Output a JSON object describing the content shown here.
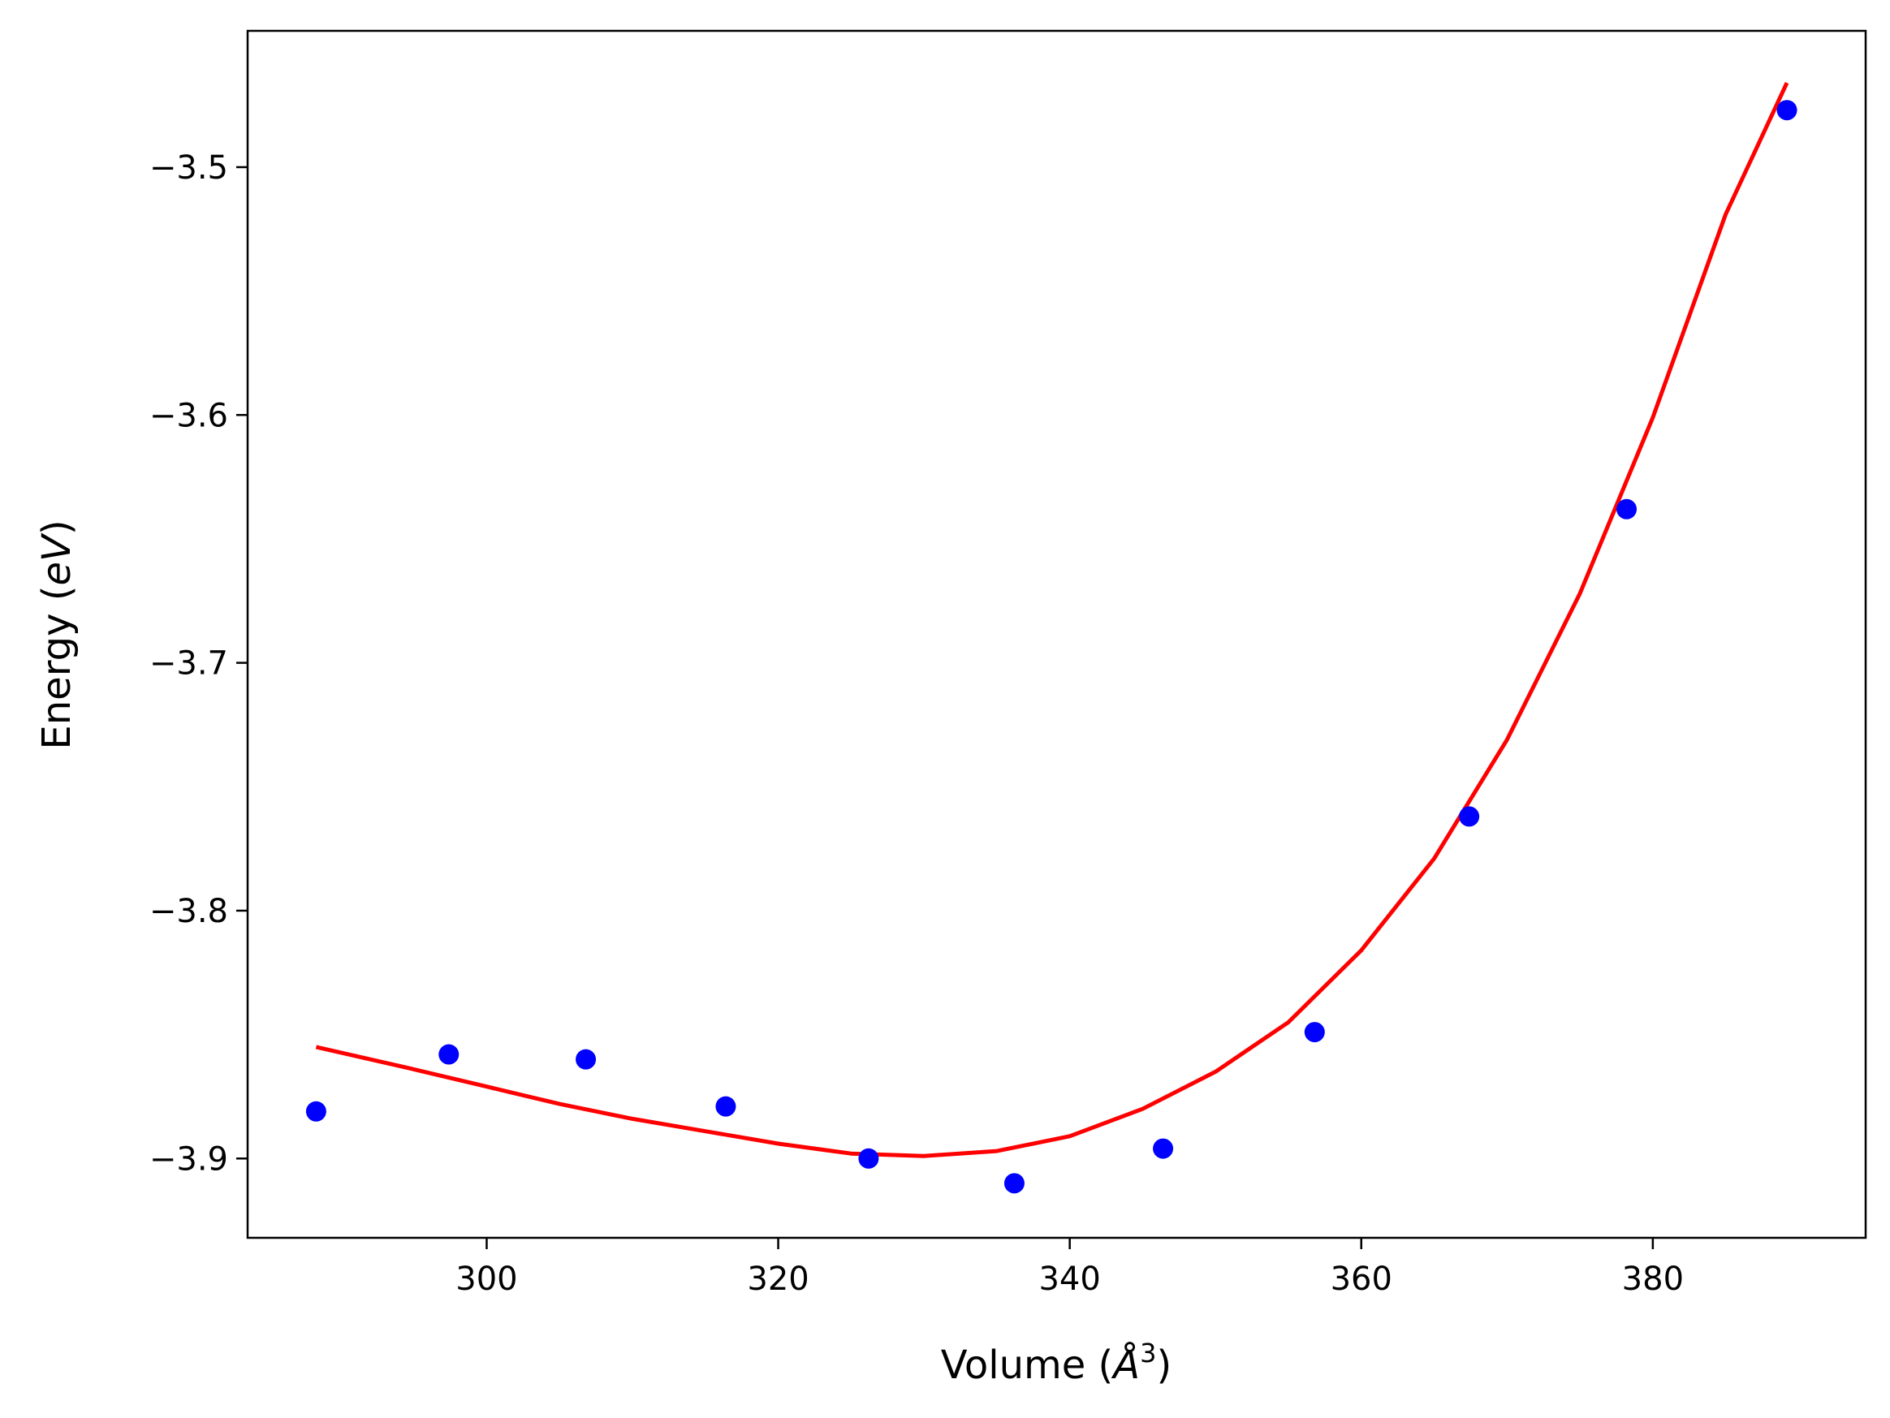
{
  "chart_data": {
    "type": "scatter",
    "title": "",
    "xlabel": "Volume (Å³)",
    "xlabel_parts": {
      "prefix": "Volume (",
      "symbol": "Å",
      "superscript": "3",
      "suffix": ")"
    },
    "ylabel": "Energy (eV)",
    "ylabel_parts": {
      "prefix": "Energy (",
      "symbol": "eV",
      "suffix": ")"
    },
    "xlim": [
      283.6,
      394.6
    ],
    "ylim": [
      -3.932,
      -3.445
    ],
    "xticks": [
      300,
      320,
      340,
      360,
      380
    ],
    "xtick_labels": [
      "300",
      "320",
      "340",
      "360",
      "380"
    ],
    "yticks": [
      -3.9,
      -3.8,
      -3.7,
      -3.6,
      -3.5
    ],
    "ytick_labels": [
      "−3.9",
      "−3.8",
      "−3.7",
      "−3.6",
      "−3.5"
    ],
    "grid": false,
    "series": [
      {
        "kind": "scatter",
        "color": "#0000ff",
        "x": [
          288.3,
          297.4,
          306.8,
          316.4,
          326.2,
          336.2,
          346.4,
          356.8,
          367.4,
          378.2,
          389.2
        ],
        "y": [
          -3.881,
          -3.858,
          -3.86,
          -3.879,
          -3.9,
          -3.91,
          -3.896,
          -3.849,
          -3.762,
          -3.638,
          -3.477
        ]
      },
      {
        "kind": "line",
        "color": "#ff0000",
        "x": [
          288.3,
          295,
          300,
          305,
          310,
          315,
          320,
          325,
          330,
          335,
          340,
          345,
          350,
          355,
          360,
          365,
          370,
          375,
          380,
          385,
          389.2
        ],
        "y": [
          -3.855,
          -3.864,
          -3.871,
          -3.878,
          -3.884,
          -3.889,
          -3.894,
          -3.898,
          -3.899,
          -3.897,
          -3.891,
          -3.88,
          -3.865,
          -3.845,
          -3.816,
          -3.779,
          -3.731,
          -3.672,
          -3.601,
          -3.519,
          -3.466
        ]
      }
    ]
  }
}
